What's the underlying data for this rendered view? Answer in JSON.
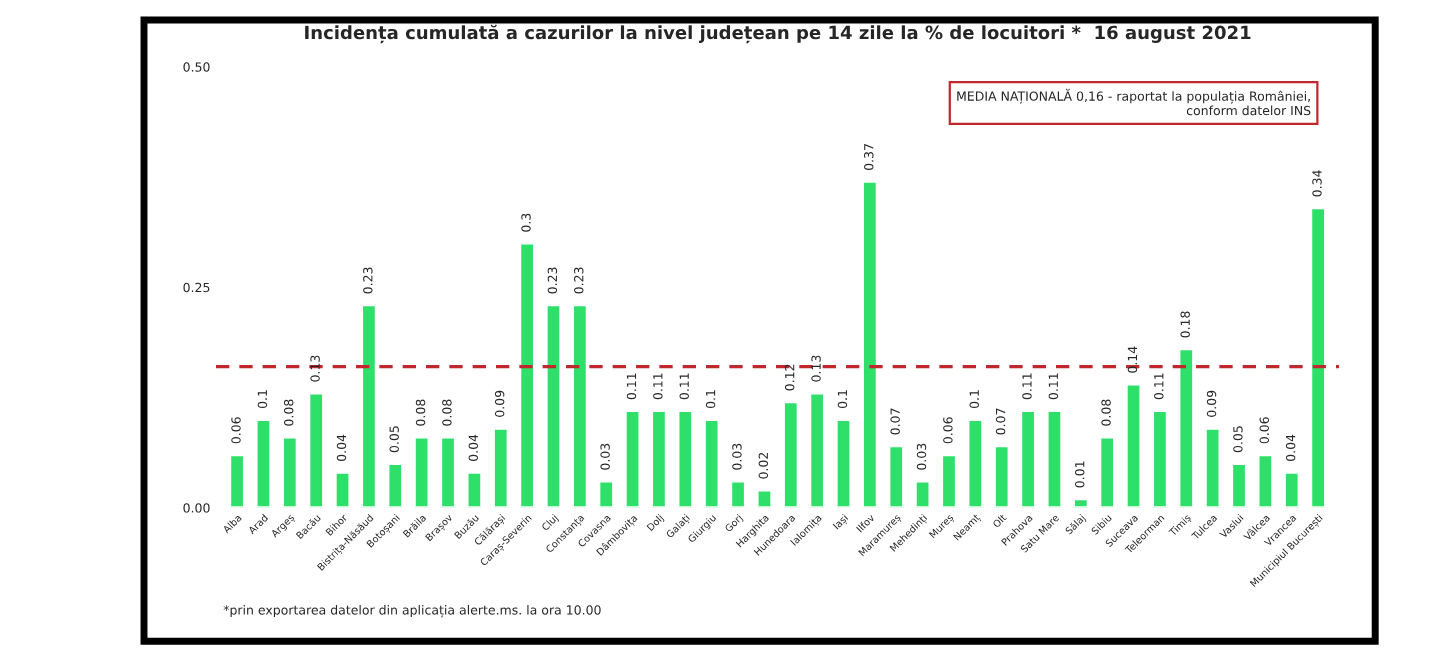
{
  "chart_data": {
    "type": "bar",
    "title": "Incidența cumulată a cazurilor la nivel județean pe 14 zile la % de locuitori *  16 august 2021",
    "categories": [
      "Alba",
      "Arad",
      "Argeș",
      "Bacău",
      "Bihor",
      "Bistrița-Năsăud",
      "Botoșani",
      "Brăila",
      "Brașov",
      "Buzău",
      "Călărași",
      "Caraș-Severin",
      "Cluj",
      "Constanța",
      "Covasna",
      "Dâmbovița",
      "Dolj",
      "Galați",
      "Giurgiu",
      "Gorj",
      "Harghita",
      "Hunedoara",
      "Ialomița",
      "Iași",
      "Ilfov",
      "Maramureș",
      "Mehedinți",
      "Mureș",
      "Neamț",
      "Olt",
      "Prahova",
      "Satu Mare",
      "Sălaj",
      "Sibiu",
      "Suceava",
      "Teleorman",
      "Timiș",
      "Tulcea",
      "Vaslui",
      "Vâlcea",
      "Vrancea",
      "Municipiul București"
    ],
    "values": [
      0.06,
      0.1,
      0.08,
      0.13,
      0.04,
      0.23,
      0.05,
      0.08,
      0.08,
      0.04,
      0.09,
      0.3,
      0.23,
      0.23,
      0.03,
      0.11,
      0.11,
      0.11,
      0.1,
      0.03,
      0.02,
      0.12,
      0.13,
      0.1,
      0.37,
      0.07,
      0.03,
      0.06,
      0.1,
      0.07,
      0.11,
      0.11,
      0.01,
      0.08,
      0.14,
      0.11,
      0.18,
      0.09,
      0.05,
      0.06,
      0.04,
      0.34
    ],
    "color": "#2ee06a",
    "data_labels": true,
    "ylim": [
      0,
      0.5
    ],
    "yticks": [
      {
        "value": 0,
        "label": "0.00"
      },
      {
        "value": 0.25,
        "label": "0.25"
      },
      {
        "value": 0.5,
        "label": "0.50"
      }
    ],
    "ref_lines": [
      {
        "axis": "y",
        "value": 0.16,
        "color": "#c0282d",
        "line_style": "dashed"
      }
    ],
    "annotations": [
      "MEDIA NAȚIONALĂ 0,16 - raportat la populația României,\nconform datelor INS",
      "*prin exportarea datelor din aplicația alerte.ms. la ora 10.00"
    ],
    "grid": false,
    "legend": false
  }
}
